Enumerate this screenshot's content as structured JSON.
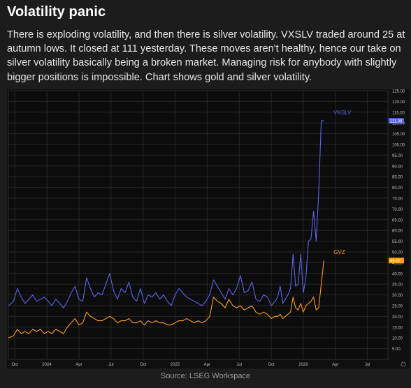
{
  "title": "Volatility panic",
  "description": "There is exploding volatility, and then there is silver volatility. VXSLV traded around 25 at autumn lows. It closed at 111 yesterday. These moves aren't healthy, hence our take on silver volatility basically being a broken market. Managing risk for anybody with slightly bigger positions is impossible. Chart shows gold and silver volatility.",
  "source": "Source: LSEG Workspace",
  "chart_data": {
    "type": "line",
    "title": "",
    "xlabel": "",
    "ylabel": "",
    "ylim": [
      0,
      125
    ],
    "y_ticks": [
      "5.00",
      "10.00",
      "15.00",
      "20.00",
      "25.00",
      "30.00",
      "35.00",
      "40.00",
      "45.00",
      "50.00",
      "55.00",
      "60.00",
      "65.00",
      "70.00",
      "75.00",
      "80.00",
      "85.00",
      "90.00",
      "95.00",
      "100.00",
      "105.00",
      "110.00",
      "115.00",
      "120.00",
      "125.00"
    ],
    "x_ticks": [
      "Oct",
      "2024",
      "Apr",
      "Jul",
      "Oct",
      "2025",
      "Apr",
      "Jul",
      "Oct",
      "2026",
      "Apr",
      "Jul"
    ],
    "x_tick_values": [
      2023.75,
      2024.0,
      2024.25,
      2024.5,
      2024.75,
      2025.0,
      2025.25,
      2025.5,
      2025.75,
      2026.0,
      2026.25,
      2026.5
    ],
    "x_range": [
      2023.7,
      2026.66
    ],
    "grid": true,
    "series": [
      {
        "name": "VXSLV",
        "color": "#5b63e8",
        "last_value_label": "111.36",
        "x": [
          2023.7,
          2023.74,
          2023.77,
          2023.8,
          2023.83,
          2023.86,
          2023.89,
          2023.92,
          2023.95,
          2023.98,
          2024.01,
          2024.04,
          2024.07,
          2024.1,
          2024.13,
          2024.16,
          2024.19,
          2024.22,
          2024.25,
          2024.28,
          2024.31,
          2024.34,
          2024.37,
          2024.4,
          2024.43,
          2024.46,
          2024.49,
          2024.52,
          2024.55,
          2024.58,
          2024.61,
          2024.64,
          2024.67,
          2024.7,
          2024.73,
          2024.76,
          2024.79,
          2024.82,
          2024.85,
          2024.88,
          2024.91,
          2024.94,
          2024.97,
          2025.0,
          2025.03,
          2025.06,
          2025.09,
          2025.12,
          2025.15,
          2025.18,
          2025.21,
          2025.24,
          2025.27,
          2025.3,
          2025.33,
          2025.36,
          2025.39,
          2025.42,
          2025.45,
          2025.48,
          2025.51,
          2025.54,
          2025.57,
          2025.6,
          2025.63,
          2025.66,
          2025.69,
          2025.72,
          2025.75,
          2025.78,
          2025.8,
          2025.82,
          2025.84,
          2025.86,
          2025.88,
          2025.9,
          2025.92,
          2025.94,
          2025.96,
          2025.98,
          2026.0,
          2026.02,
          2026.04,
          2026.06,
          2026.08,
          2026.1,
          2026.12,
          2026.14,
          2026.16
        ],
        "y": [
          25,
          27,
          33,
          29,
          26,
          28,
          30,
          27,
          28,
          29,
          27,
          25,
          28,
          26,
          24,
          27,
          31,
          34,
          28,
          27,
          38,
          33,
          29,
          31,
          30,
          35,
          40,
          32,
          28,
          33,
          31,
          36,
          29,
          27,
          33,
          26,
          30,
          29,
          31,
          28,
          30,
          27,
          25,
          30,
          33,
          31,
          29,
          28,
          27,
          26,
          25,
          27,
          30,
          37,
          34,
          31,
          28,
          33,
          30,
          33,
          39,
          31,
          32,
          36,
          28,
          27,
          30,
          29,
          25,
          27,
          29,
          34,
          26,
          28,
          30,
          33,
          49,
          34,
          35,
          49,
          31,
          38,
          55,
          56,
          69,
          55,
          77,
          111,
          111
        ]
      },
      {
        "name": "GVZ",
        "color": "#ff9a1a",
        "last_value_label": "46.02",
        "x": [
          2023.7,
          2023.74,
          2023.77,
          2023.8,
          2023.83,
          2023.86,
          2023.89,
          2023.92,
          2023.95,
          2023.98,
          2024.01,
          2024.04,
          2024.07,
          2024.1,
          2024.13,
          2024.16,
          2024.19,
          2024.22,
          2024.25,
          2024.28,
          2024.31,
          2024.34,
          2024.37,
          2024.4,
          2024.43,
          2024.46,
          2024.49,
          2024.52,
          2024.55,
          2024.58,
          2024.61,
          2024.64,
          2024.67,
          2024.7,
          2024.73,
          2024.76,
          2024.79,
          2024.82,
          2024.85,
          2024.88,
          2024.91,
          2024.94,
          2024.97,
          2025.0,
          2025.03,
          2025.06,
          2025.09,
          2025.12,
          2025.15,
          2025.18,
          2025.21,
          2025.24,
          2025.27,
          2025.3,
          2025.33,
          2025.36,
          2025.39,
          2025.42,
          2025.45,
          2025.48,
          2025.51,
          2025.54,
          2025.57,
          2025.6,
          2025.63,
          2025.66,
          2025.69,
          2025.72,
          2025.75,
          2025.78,
          2025.8,
          2025.82,
          2025.84,
          2025.86,
          2025.88,
          2025.9,
          2025.92,
          2025.94,
          2025.96,
          2025.98,
          2026.0,
          2026.02,
          2026.04,
          2026.06,
          2026.08,
          2026.1,
          2026.12,
          2026.14,
          2026.16
        ],
        "y": [
          10,
          11,
          14,
          12,
          13,
          12,
          14,
          13,
          14,
          12,
          13,
          12,
          14,
          13,
          12,
          15,
          17,
          19,
          16,
          17,
          22,
          20,
          19,
          18,
          18,
          19,
          20,
          19,
          17,
          18,
          18,
          19,
          17,
          17,
          18,
          16,
          18,
          17,
          18,
          17,
          17,
          16,
          16,
          17,
          18,
          18,
          19,
          18,
          17,
          18,
          17,
          18,
          20,
          29,
          27,
          26,
          24,
          28,
          25,
          24,
          25,
          23,
          24,
          25,
          22,
          21,
          22,
          21,
          19,
          20,
          20,
          21,
          19,
          20,
          21,
          22,
          29,
          24,
          23,
          26,
          22,
          25,
          26,
          27,
          29,
          23,
          24,
          35,
          46
        ]
      }
    ],
    "legend": [
      {
        "name": "VXSLV",
        "placement": "inline-right"
      },
      {
        "name": "GVZ",
        "placement": "inline-right"
      }
    ]
  }
}
